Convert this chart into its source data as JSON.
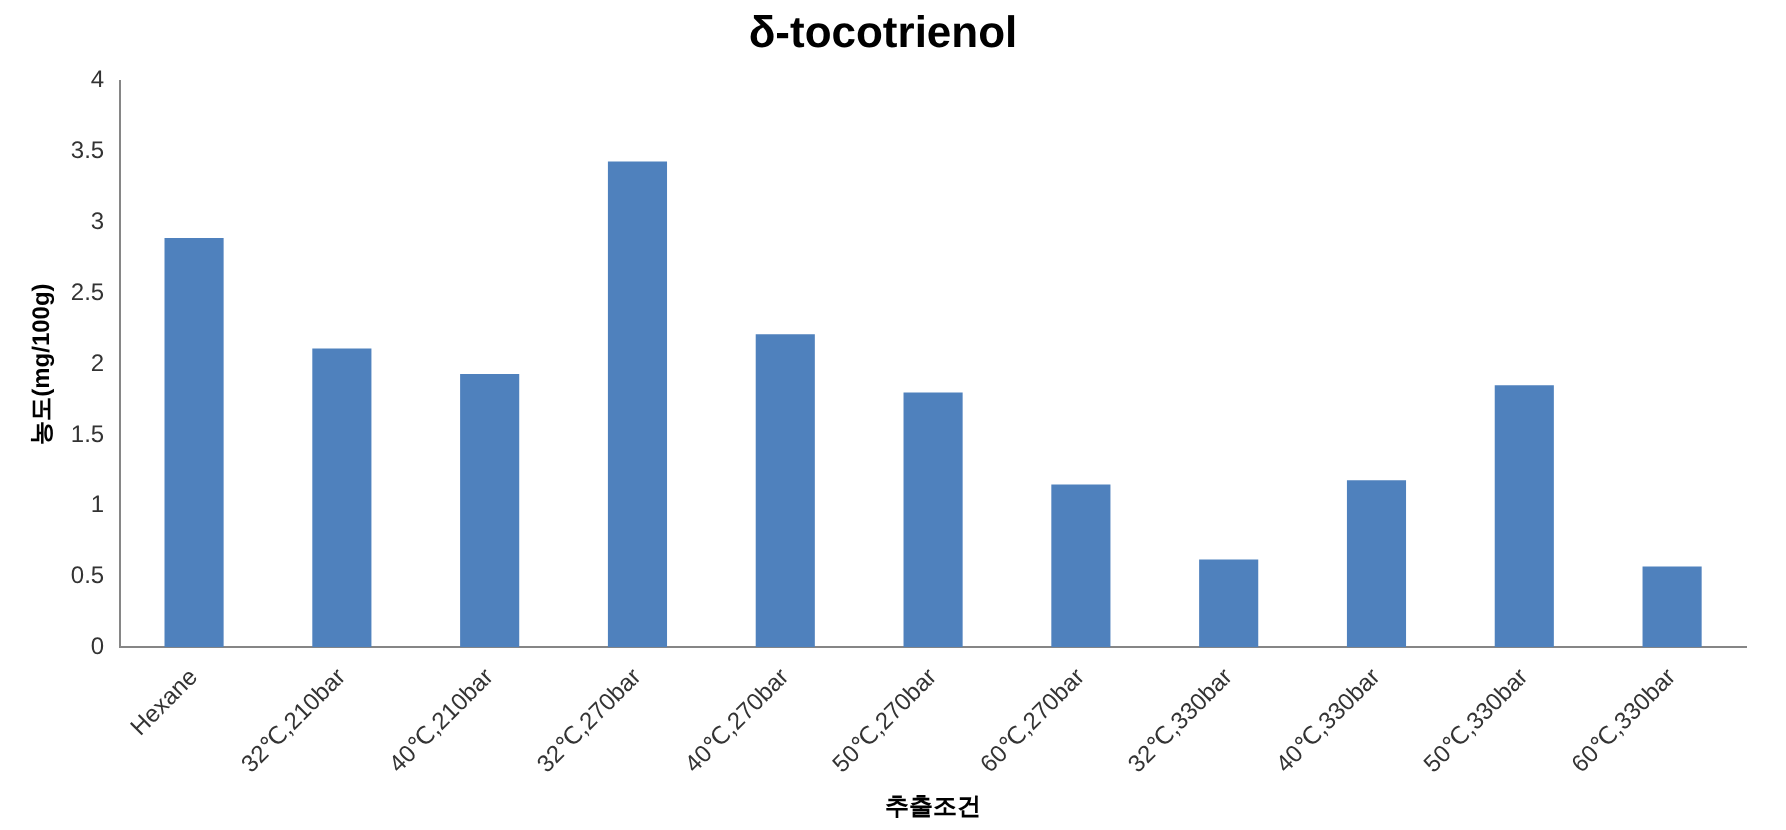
{
  "chart_data": {
    "type": "bar",
    "title": "δ-tocotrienol",
    "xlabel": "추출조건",
    "ylabel": "농도(mg/100g)",
    "categories": [
      "Hexane",
      "32℃,210bar",
      "40℃,210bar",
      "32℃,270bar",
      "40℃,270bar",
      "50℃,270bar",
      "60℃,270bar",
      "32℃,330bar",
      "40℃,330bar",
      "50℃,330bar",
      "60℃,330bar"
    ],
    "values": [
      2.89,
      2.11,
      1.93,
      3.43,
      2.21,
      1.8,
      1.15,
      0.62,
      1.18,
      1.85,
      0.57
    ],
    "color": "#4f81bd",
    "ylim": [
      0,
      4
    ],
    "yticks": [
      0,
      0.5,
      1,
      1.5,
      2,
      2.5,
      3,
      3.5,
      4
    ],
    "grid": false,
    "legend": false
  }
}
